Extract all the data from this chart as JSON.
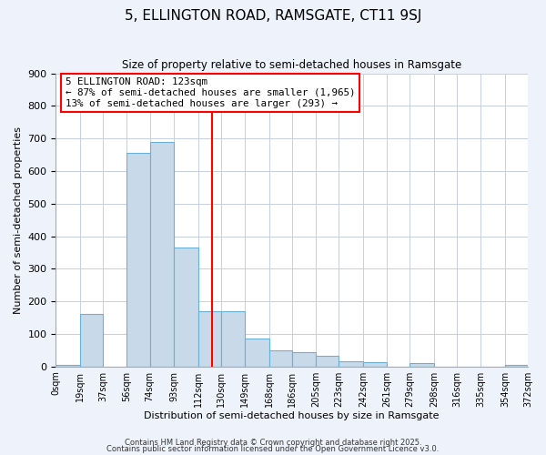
{
  "title": "5, ELLINGTON ROAD, RAMSGATE, CT11 9SJ",
  "subtitle": "Size of property relative to semi-detached houses in Ramsgate",
  "xlabel": "Distribution of semi-detached houses by size in Ramsgate",
  "ylabel": "Number of semi-detached properties",
  "bar_left_edges": [
    0,
    19,
    37,
    56,
    74,
    93,
    112,
    130,
    149,
    168,
    186,
    205,
    223,
    242,
    261,
    279,
    298,
    316,
    335,
    354
  ],
  "bar_rights": [
    19,
    37,
    56,
    74,
    93,
    112,
    130,
    149,
    168,
    186,
    205,
    223,
    242,
    261,
    279,
    298,
    316,
    335,
    354,
    372
  ],
  "bar_heights": [
    5,
    160,
    0,
    655,
    690,
    365,
    170,
    170,
    85,
    50,
    45,
    33,
    15,
    12,
    0,
    10,
    0,
    0,
    0,
    5
  ],
  "bar_color": "#c8daea",
  "bar_edgecolor": "#6baed6",
  "vline_x": 123,
  "vline_color": "red",
  "annotation_title": "5 ELLINGTON ROAD: 123sqm",
  "annotation_line1": "← 87% of semi-detached houses are smaller (1,965)",
  "annotation_line2": "13% of semi-detached houses are larger (293) →",
  "annotation_box_facecolor": "white",
  "annotation_box_edgecolor": "red",
  "xlim": [
    0,
    372
  ],
  "ylim": [
    0,
    900
  ],
  "yticks": [
    0,
    100,
    200,
    300,
    400,
    500,
    600,
    700,
    800,
    900
  ],
  "xtick_labels": [
    "0sqm",
    "19sqm",
    "37sqm",
    "56sqm",
    "74sqm",
    "93sqm",
    "112sqm",
    "130sqm",
    "149sqm",
    "168sqm",
    "186sqm",
    "205sqm",
    "223sqm",
    "242sqm",
    "261sqm",
    "279sqm",
    "298sqm",
    "316sqm",
    "335sqm",
    "354sqm",
    "372sqm"
  ],
  "xtick_positions": [
    0,
    19,
    37,
    56,
    74,
    93,
    112,
    130,
    149,
    168,
    186,
    205,
    223,
    242,
    261,
    279,
    298,
    316,
    335,
    354,
    372
  ],
  "footer1": "Contains HM Land Registry data © Crown copyright and database right 2025.",
  "footer2": "Contains public sector information licensed under the Open Government Licence v3.0.",
  "background_color": "#eef2fb",
  "plot_background_color": "#ffffff",
  "grid_color": "#c5cfe0"
}
